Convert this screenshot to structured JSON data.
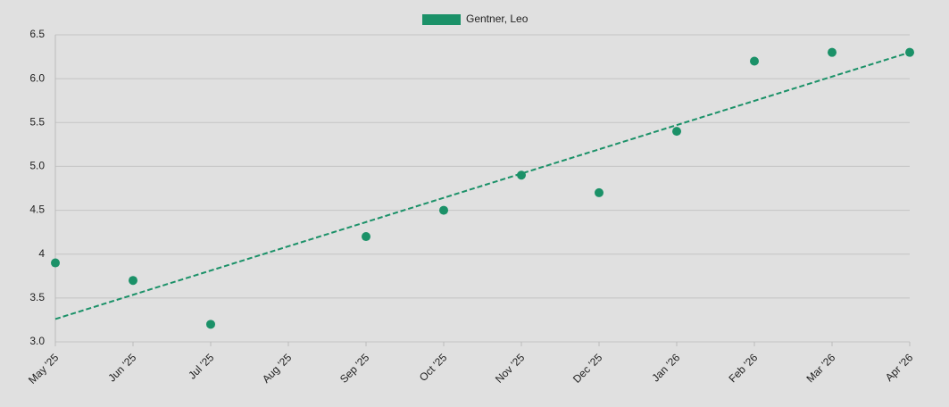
{
  "chart_data": {
    "type": "scatter",
    "legend_position": "top",
    "categories": [
      "May '25",
      "Jun '25",
      "Jul '25",
      "Aug '25",
      "Sep '25",
      "Oct '25",
      "Nov '25",
      "Dec '25",
      "Jan '26",
      "Feb '26",
      "Mar '26",
      "Apr '26"
    ],
    "series": [
      {
        "name": "Gentner, Leo",
        "color": "#1b9168",
        "values": [
          3.9,
          3.7,
          3.2,
          null,
          4.2,
          4.5,
          4.9,
          4.7,
          5.4,
          6.2,
          6.3,
          6.3
        ]
      }
    ],
    "trend_values": [
      3.26,
      6.3
    ],
    "ylim": [
      3.0,
      6.5
    ],
    "yticks": [
      {
        "value": 3.0,
        "label": "3.0"
      },
      3.5,
      4.0,
      4.5,
      {
        "value": 5.0,
        "label": "5.0"
      },
      5.5,
      {
        "value": 6.0,
        "label": "6.0"
      },
      6.5
    ],
    "grid": true
  }
}
